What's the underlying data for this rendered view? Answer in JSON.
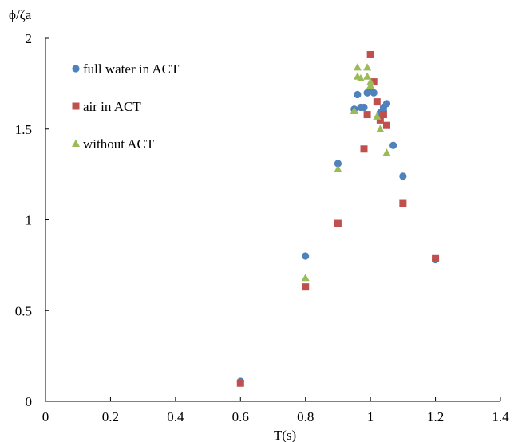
{
  "chart_data": {
    "type": "scatter",
    "xlabel": "T(s)",
    "ylabel": "ϕ/ζa",
    "xlim": [
      0,
      1.4
    ],
    "ylim": [
      0,
      2
    ],
    "xticks": [
      "0",
      "0.2",
      "0.4",
      "0.6",
      "0.8",
      "1",
      "1.2",
      "1.4"
    ],
    "yticks": [
      "0",
      "0.5",
      "1",
      "1.5",
      "2"
    ],
    "grid": false,
    "legend_position": "top-left",
    "series": [
      {
        "name": "full water in ACT",
        "marker": "circle",
        "color": "#4f81bd",
        "points": [
          [
            0.6,
            0.11
          ],
          [
            0.8,
            0.8
          ],
          [
            0.9,
            1.31
          ],
          [
            0.95,
            1.61
          ],
          [
            0.96,
            1.69
          ],
          [
            0.97,
            1.62
          ],
          [
            0.98,
            1.62
          ],
          [
            0.99,
            1.7
          ],
          [
            1.0,
            1.71
          ],
          [
            1.01,
            1.7
          ],
          [
            1.03,
            1.59
          ],
          [
            1.04,
            1.6
          ],
          [
            1.04,
            1.62
          ],
          [
            1.05,
            1.64
          ],
          [
            1.07,
            1.41
          ],
          [
            1.1,
            1.24
          ],
          [
            1.2,
            0.78
          ]
        ]
      },
      {
        "name": "air in ACT",
        "marker": "square",
        "color": "#c0504d",
        "points": [
          [
            0.6,
            0.1
          ],
          [
            0.8,
            0.63
          ],
          [
            0.9,
            0.98
          ],
          [
            0.98,
            1.39
          ],
          [
            0.99,
            1.58
          ],
          [
            1.0,
            1.91
          ],
          [
            1.01,
            1.76
          ],
          [
            1.02,
            1.65
          ],
          [
            1.03,
            1.55
          ],
          [
            1.04,
            1.58
          ],
          [
            1.05,
            1.52
          ],
          [
            1.1,
            1.09
          ],
          [
            1.2,
            0.79
          ]
        ]
      },
      {
        "name": "without ACT",
        "marker": "triangle",
        "color": "#9bbb59",
        "points": [
          [
            0.8,
            0.68
          ],
          [
            0.9,
            1.28
          ],
          [
            0.95,
            1.6
          ],
          [
            0.96,
            1.84
          ],
          [
            0.96,
            1.79
          ],
          [
            0.97,
            1.78
          ],
          [
            0.99,
            1.84
          ],
          [
            0.99,
            1.79
          ],
          [
            1.0,
            1.76
          ],
          [
            1.0,
            1.74
          ],
          [
            1.02,
            1.57
          ],
          [
            1.03,
            1.5
          ],
          [
            1.05,
            1.37
          ]
        ]
      }
    ]
  }
}
